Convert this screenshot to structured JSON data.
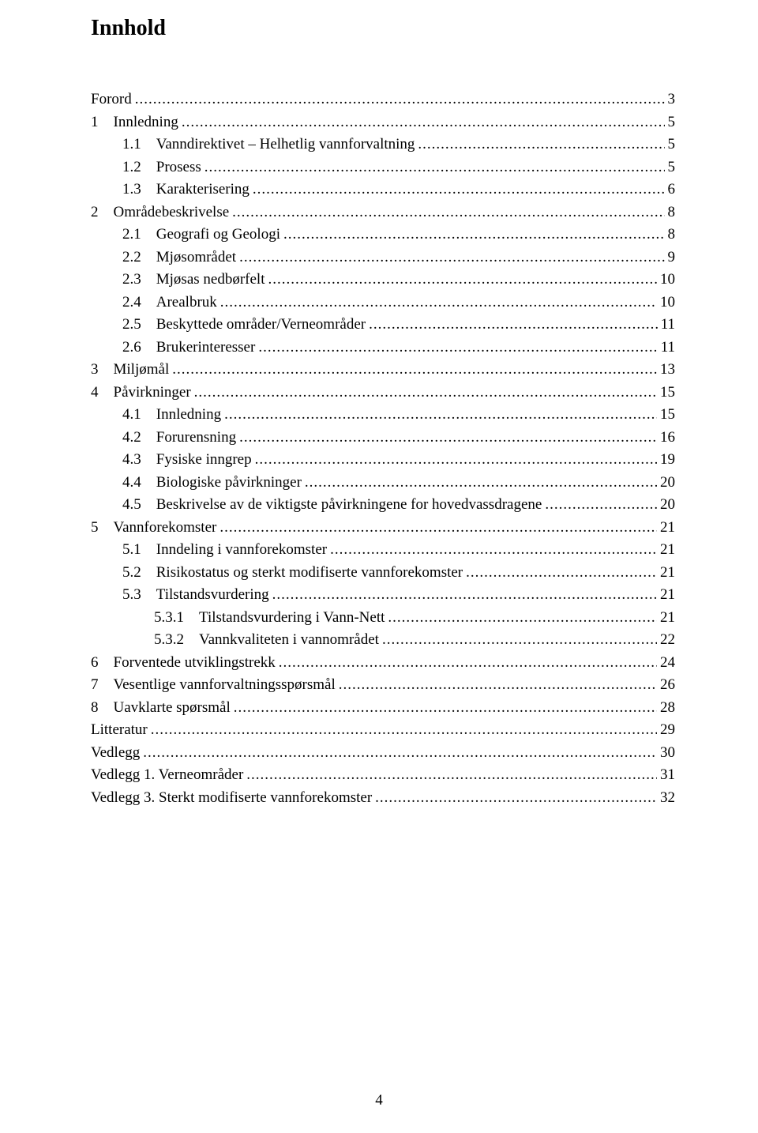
{
  "title": "Innhold",
  "footer_page_number": "4",
  "toc": [
    {
      "indent": 0,
      "label": "Forord",
      "page": "3"
    },
    {
      "indent": 0,
      "label": "1 Innledning",
      "page": "5"
    },
    {
      "indent": 1,
      "label": "1.1 Vanndirektivet – Helhetlig vannforvaltning",
      "page": "5"
    },
    {
      "indent": 1,
      "label": "1.2 Prosess",
      "page": "5"
    },
    {
      "indent": 1,
      "label": "1.3 Karakterisering",
      "page": "6"
    },
    {
      "indent": 0,
      "label": "2 Områdebeskrivelse",
      "page": "8"
    },
    {
      "indent": 1,
      "label": "2.1 Geografi og Geologi",
      "page": "8"
    },
    {
      "indent": 1,
      "label": "2.2 Mjøsområdet",
      "page": "9"
    },
    {
      "indent": 1,
      "label": "2.3 Mjøsas nedbørfelt",
      "page": "10"
    },
    {
      "indent": 1,
      "label": "2.4 Arealbruk",
      "page": "10"
    },
    {
      "indent": 1,
      "label": "2.5 Beskyttede områder/Verneområder",
      "page": "11"
    },
    {
      "indent": 1,
      "label": "2.6 Brukerinteresser",
      "page": "11"
    },
    {
      "indent": 0,
      "label": "3 Miljømål",
      "page": "13"
    },
    {
      "indent": 0,
      "label": "4 Påvirkninger",
      "page": "15"
    },
    {
      "indent": 1,
      "label": "4.1 Innledning",
      "page": "15"
    },
    {
      "indent": 1,
      "label": "4.2 Forurensning",
      "page": "16"
    },
    {
      "indent": 1,
      "label": "4.3 Fysiske inngrep",
      "page": "19"
    },
    {
      "indent": 1,
      "label": "4.4 Biologiske påvirkninger",
      "page": "20"
    },
    {
      "indent": 1,
      "label": "4.5 Beskrivelse av de viktigste påvirkningene for hovedvassdragene",
      "page": "20"
    },
    {
      "indent": 0,
      "label": "5 Vannforekomster",
      "page": "21"
    },
    {
      "indent": 1,
      "label": "5.1 Inndeling i vannforekomster",
      "page": "21"
    },
    {
      "indent": 1,
      "label": "5.2 Risikostatus og sterkt modifiserte vannforekomster",
      "page": "21"
    },
    {
      "indent": 1,
      "label": "5.3 Tilstandsvurdering",
      "page": "21"
    },
    {
      "indent": 2,
      "label": "5.3.1 Tilstandsvurdering i Vann-Nett",
      "page": "21"
    },
    {
      "indent": 2,
      "label": "5.3.2 Vannkvaliteten i vannområdet",
      "page": "22"
    },
    {
      "indent": 0,
      "label": "6 Forventede utviklingstrekk",
      "page": "24"
    },
    {
      "indent": 0,
      "label": "7 Vesentlige vannforvaltningsspørsmål",
      "page": "26"
    },
    {
      "indent": 0,
      "label": "8 Uavklarte spørsmål",
      "page": "28"
    },
    {
      "indent": 0,
      "label": "Litteratur",
      "page": "29"
    },
    {
      "indent": 0,
      "label": "Vedlegg",
      "page": "30"
    },
    {
      "indent": 0,
      "label": "Vedlegg 1. Verneområder",
      "page": "31"
    },
    {
      "indent": 0,
      "label": "Vedlegg 3. Sterkt modifiserte vannforekomster",
      "page": "32"
    }
  ]
}
